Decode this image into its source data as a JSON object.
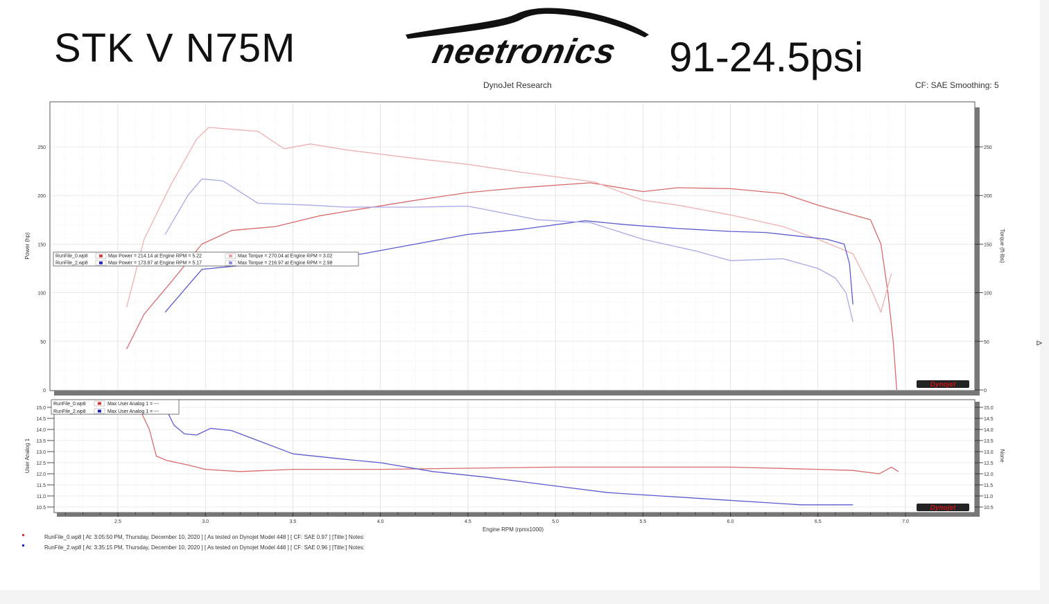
{
  "header": {
    "title_left": "STK V N75M",
    "logo_text": "neetronics",
    "title_right": "91-24.5psi",
    "dyno_title": "DynoJet Research",
    "cf_info": "CF: SAE Smoothing: 5"
  },
  "colors": {
    "run0_power": "#d96a6a",
    "run0_torque": "#f0b0b0",
    "run2_power": "#5a5ad0",
    "run2_torque": "#a8a8e6",
    "grid": "#dcdcdc",
    "brand": "#c4161c"
  },
  "chart_data": [
    {
      "type": "line",
      "title": "DynoJet Research",
      "xlabel": "Engine RPM (rpmx1000)",
      "ylabel": "Power (hp)",
      "ylabel_right": "Torque (ft-lbs)",
      "xlim": [
        2.0,
        7.0
      ],
      "ylim": [
        0,
        285
      ],
      "y_ticks": [
        "0",
        "50",
        "100",
        "150",
        "200",
        "250"
      ],
      "series": [
        {
          "name": "RunFile_0.wp8",
          "measure": "power",
          "x": [
            2.55,
            2.65,
            2.8,
            2.98,
            3.15,
            3.4,
            3.65,
            3.85,
            4.2,
            4.5,
            4.8,
            5.2,
            5.5,
            5.7,
            6.0,
            6.3,
            6.5,
            6.7,
            6.8,
            6.86,
            6.9,
            6.93,
            6.95
          ],
          "values": [
            42,
            78,
            110,
            150,
            164,
            168,
            179,
            185,
            195,
            203,
            208,
            213,
            204,
            208,
            207,
            202,
            190,
            180,
            175,
            150,
            100,
            50,
            0
          ]
        },
        {
          "name": "RunFile_0.wp8",
          "measure": "torque",
          "x": [
            2.55,
            2.65,
            2.8,
            2.95,
            3.02,
            3.15,
            3.3,
            3.45,
            3.6,
            3.8,
            4.2,
            4.5,
            4.8,
            5.22,
            5.5,
            5.7,
            6.0,
            6.3,
            6.5,
            6.7,
            6.8,
            6.86,
            6.92
          ],
          "values": [
            85,
            155,
            210,
            258,
            270,
            268,
            266,
            248,
            253,
            247,
            238,
            232,
            224,
            214,
            195,
            190,
            180,
            168,
            155,
            140,
            105,
            80,
            120
          ]
        },
        {
          "name": "RunFile_2.wp8",
          "measure": "power",
          "x": [
            2.77,
            2.98,
            3.2,
            3.5,
            3.9,
            4.2,
            4.5,
            4.8,
            5.17,
            5.4,
            5.7,
            6.0,
            6.2,
            6.4,
            6.55,
            6.65,
            6.68,
            6.7
          ],
          "values": [
            80,
            124,
            128,
            132,
            140,
            150,
            160,
            165,
            174,
            170,
            166,
            163,
            162,
            158,
            155,
            150,
            130,
            88
          ]
        },
        {
          "name": "RunFile_2.wp8",
          "measure": "torque",
          "x": [
            2.77,
            2.9,
            2.98,
            3.1,
            3.3,
            3.6,
            3.8,
            4.2,
            4.5,
            4.9,
            5.2,
            5.5,
            5.8,
            6.0,
            6.3,
            6.5,
            6.6,
            6.66,
            6.7
          ],
          "values": [
            160,
            200,
            217,
            215,
            192,
            190,
            188,
            188,
            189,
            175,
            172,
            155,
            143,
            133,
            135,
            125,
            115,
            100,
            70
          ]
        }
      ],
      "legend": {
        "placement": "left",
        "rows": [
          {
            "file": "RunFile_0.wp8",
            "power_text": "Max Power = 214.14 at Engine RPM = 5.22",
            "torque_text": "Max Torque = 270.04 at Engine RPM = 3.02"
          },
          {
            "file": "RunFile_2.wp8",
            "power_text": "Max Power = 173.87 at Engine RPM = 5.17",
            "torque_text": "Max Torque = 216.97 at Engine RPM = 2.98"
          }
        ]
      },
      "grid": true
    },
    {
      "type": "line",
      "xlabel": "Engine RPM (rpmx1000)",
      "ylabel": "User Analog 1",
      "ylabel_right": "None",
      "xlim": [
        2.0,
        7.0
      ],
      "ylim": [
        10.3,
        15.3
      ],
      "x_ticks": [
        "2.5",
        "3.0",
        "3.5",
        "4.0",
        "4.5",
        "5.0",
        "5.5",
        "6.0",
        "6.5",
        "7.0"
      ],
      "y_ticks": [
        "10.5",
        "11.0",
        "11.5",
        "12.0",
        "12.5",
        "13.0",
        "13.5",
        "14.0",
        "14.5",
        "15.0"
      ],
      "series": [
        {
          "name": "RunFile_0.wp8",
          "x": [
            2.62,
            2.68,
            2.72,
            2.78,
            2.9,
            3.0,
            3.2,
            3.5,
            4.0,
            4.5,
            5.0,
            5.5,
            6.0,
            6.5,
            6.7,
            6.85,
            6.92,
            6.96
          ],
          "values": [
            15.0,
            14.0,
            12.8,
            12.6,
            12.4,
            12.2,
            12.1,
            12.2,
            12.2,
            12.25,
            12.3,
            12.3,
            12.3,
            12.2,
            12.15,
            12.0,
            12.3,
            12.1
          ]
        },
        {
          "name": "RunFile_2.wp8",
          "x": [
            2.77,
            2.82,
            2.88,
            2.95,
            3.03,
            3.15,
            3.3,
            3.5,
            3.8,
            4.0,
            4.3,
            4.6,
            5.0,
            5.3,
            5.6,
            5.9,
            6.2,
            6.4,
            6.7
          ],
          "values": [
            15.0,
            14.2,
            13.8,
            13.75,
            14.05,
            13.95,
            13.5,
            12.9,
            12.65,
            12.5,
            12.1,
            11.85,
            11.45,
            11.15,
            11.0,
            10.85,
            10.7,
            10.6,
            10.6
          ]
        }
      ],
      "legend": {
        "placement": "top-left",
        "rows": [
          {
            "file": "RunFile_0.wp8",
            "text": "Max User Analog 1 = ---"
          },
          {
            "file": "RunFile_2.wp8",
            "text": "Max User Analog 1 = ---"
          }
        ]
      },
      "grid": true
    }
  ],
  "footer": {
    "line1": "RunFile_0.wp8 [ At: 3:05:50 PM, Thursday, December 10, 2020 ] [ As tested on Dynojet Model 448 ] [ CF: SAE 0.97 ] [Title:]  Notes:",
    "line2": "RunFile_2.wp8 [ At: 3:35:15 PM, Thursday, December 10, 2020 ] [ As tested on Dynojet Model 448 ] [ CF: SAE 0.96 ] [Title:]  Notes:"
  },
  "watermark_text": "Dynojet"
}
